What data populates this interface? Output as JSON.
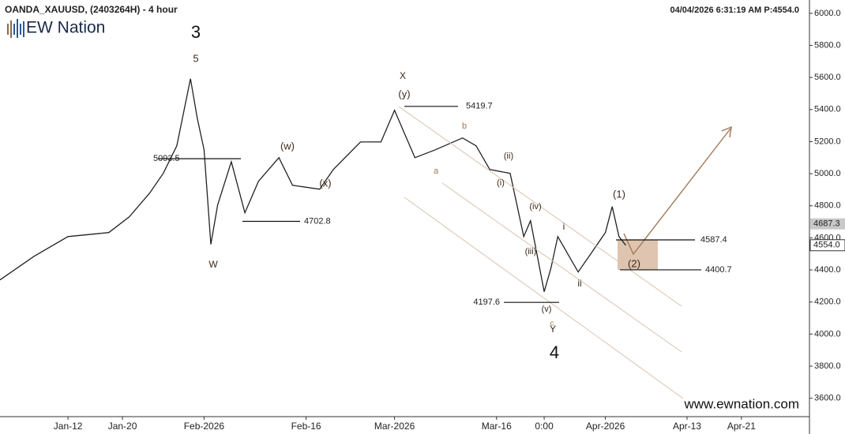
{
  "chart_data": {
    "type": "line",
    "title": "OANDA_XAUUSD, (2403264H) - 4 hour",
    "timestamp": "04/04/2026 6:31:19 AM  P:4554.0",
    "logo": "EW Nation",
    "watermark": "www.ewnation.com",
    "xlim": [
      "2026-01-02",
      "2026-05-01"
    ],
    "ylim": [
      3500,
      6083
    ],
    "xticks": [
      {
        "value": "2026-01-12",
        "label": "Jan-12"
      },
      {
        "value": "2026-01-20",
        "label": "Jan-20"
      },
      {
        "value": "2026-02-01",
        "label": "Feb-2026"
      },
      {
        "value": "2026-02-16",
        "label": "Feb-16"
      },
      {
        "value": "2026-03-01",
        "label": "Mar-2026"
      },
      {
        "value": "2026-03-16",
        "label": "Mar-16"
      },
      {
        "value": "2026-03-23",
        "label": "0:00"
      },
      {
        "value": "2026-04-01",
        "label": "Apr-2026"
      },
      {
        "value": "2026-04-13",
        "label": "Apr-13"
      },
      {
        "value": "2026-04-21",
        "label": "Apr-21"
      }
    ],
    "yticks": [
      {
        "value": 3600,
        "label": "3600.0"
      },
      {
        "value": 3800,
        "label": "3800.0"
      },
      {
        "value": 4000,
        "label": "4000.0"
      },
      {
        "value": 4200,
        "label": "4200.0"
      },
      {
        "value": 4400,
        "label": "4400.0"
      },
      {
        "value": 4600,
        "label": "4600.0"
      },
      {
        "value": 4800,
        "label": "4800.0"
      },
      {
        "value": 5000,
        "label": "5000.0"
      },
      {
        "value": 5200,
        "label": "5200.0"
      },
      {
        "value": 5400,
        "label": "5400.0"
      },
      {
        "value": 5600,
        "label": "5600.0"
      },
      {
        "value": 5800,
        "label": "5800.0"
      },
      {
        "value": 6000,
        "label": "6000.0"
      }
    ],
    "x": [
      "2026-01-02",
      "2026-01-07",
      "2026-01-12",
      "2026-01-18",
      "2026-01-21",
      "2026-01-24",
      "2026-01-26",
      "2026-01-28",
      "2026-01-30",
      "2026-01-31",
      "2026-02-01",
      "2026-02-02",
      "2026-02-03",
      "2026-02-05",
      "2026-02-07",
      "2026-02-09",
      "2026-02-12",
      "2026-02-14",
      "2026-02-18",
      "2026-02-20",
      "2026-02-24",
      "2026-02-27",
      "2026-03-01",
      "2026-03-04",
      "2026-03-07",
      "2026-03-11",
      "2026-03-13",
      "2026-03-15",
      "2026-03-18",
      "2026-03-20",
      "2026-03-21",
      "2026-03-23",
      "2026-03-24",
      "2026-03-25",
      "2026-03-28",
      "2026-03-30",
      "2026-04-01",
      "2026-04-02",
      "2026-04-03",
      "2026-04-04"
    ],
    "series": [
      {
        "name": "XAUUSD",
        "color": "#222222",
        "values": [
          4338,
          4485,
          4608,
          4633,
          4731,
          4879,
          5002,
          5174,
          5592,
          5346,
          5149,
          4560,
          4805,
          5075,
          4756,
          4953,
          5100,
          4928,
          4903,
          5026,
          5198,
          5198,
          5395,
          5100,
          5149,
          5223,
          5174,
          5026,
          5002,
          4608,
          4707,
          4264,
          4412,
          4608,
          4387,
          4510,
          4633,
          4795,
          4608,
          4554
        ]
      }
    ],
    "levels": [
      5419.7,
      5093.5,
      4702.8,
      4197.6,
      4587.4,
      4400.7
    ],
    "price_tags": [
      4687.3,
      {
        "value": 4554,
        "label": "4554.0"
      }
    ],
    "annotations": [
      "3",
      "5",
      "W",
      "X",
      "(y)",
      "(w)",
      "(x)",
      "b",
      "a",
      "(ii)",
      "(i)",
      "(iv)",
      "(iii)",
      "(v)",
      "c",
      "Y",
      "4",
      "i",
      "ii",
      "(1)",
      "(2)"
    ]
  }
}
